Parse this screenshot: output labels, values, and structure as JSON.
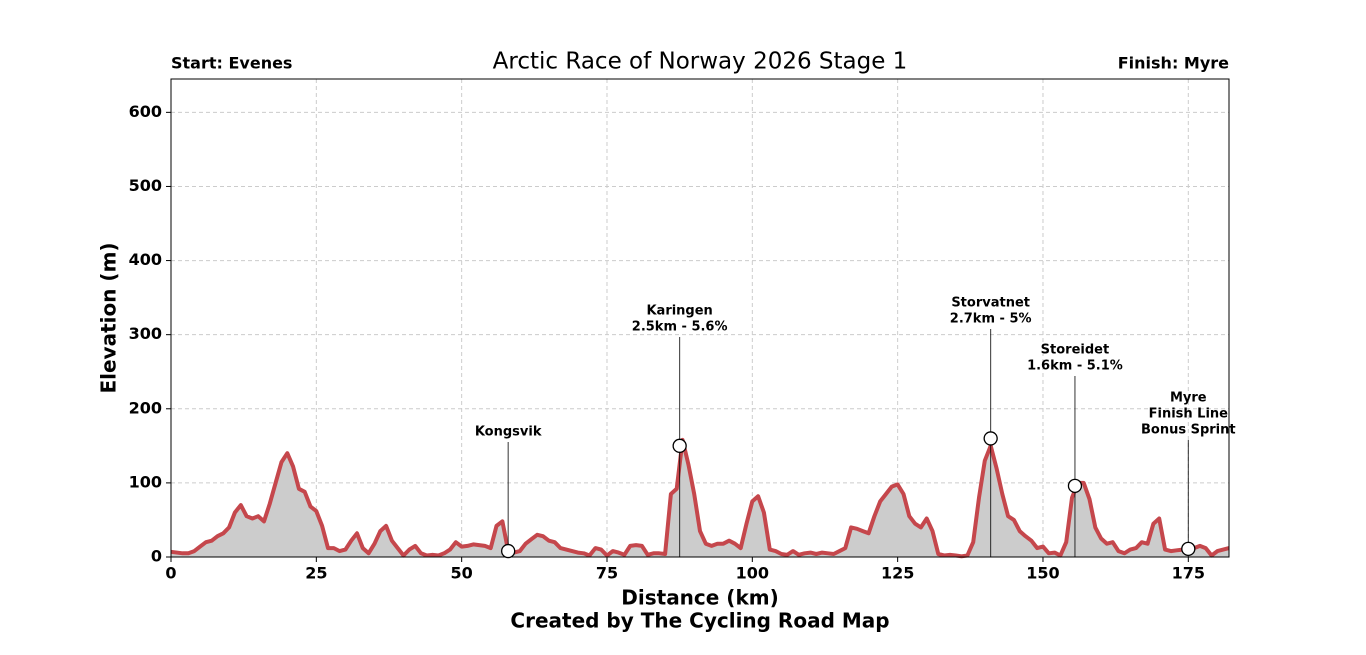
{
  "chart_data": {
    "type": "area",
    "title": "Arctic Race of Norway 2026 Stage 1",
    "start_label": "Start: Evenes",
    "finish_label": "Finish: Myre",
    "xlabel": "Distance (km)",
    "credit": "Created by The Cycling Road Map",
    "ylabel": "Elevation (m)",
    "xlim": [
      0,
      182
    ],
    "ylim": [
      0,
      645
    ],
    "xticks": [
      0,
      25,
      50,
      75,
      100,
      125,
      150,
      175
    ],
    "yticks": [
      0,
      100,
      200,
      300,
      400,
      500,
      600
    ],
    "grid": true,
    "line_color": "#c5474c",
    "fill_color": "#cccccc",
    "x": [
      0,
      2,
      3,
      4,
      5,
      6,
      7,
      8,
      9,
      10,
      11,
      12,
      13,
      14,
      15,
      16,
      17,
      18,
      19,
      20,
      21,
      22,
      23,
      24,
      25,
      26,
      27,
      28,
      29,
      30,
      31,
      32,
      33,
      34,
      35,
      36,
      37,
      38,
      39,
      40,
      41,
      42,
      43,
      44,
      45,
      46,
      47,
      48,
      49,
      50,
      51,
      52,
      53,
      54,
      55,
      56,
      57,
      58,
      59,
      60,
      61,
      62,
      63,
      64,
      65,
      66,
      67,
      68,
      69,
      70,
      71,
      72,
      73,
      74,
      75,
      76,
      77,
      78,
      79,
      80,
      81,
      82,
      83,
      84,
      85,
      86,
      87,
      88,
      89,
      90,
      91,
      92,
      93,
      94,
      95,
      96,
      97,
      98,
      99,
      100,
      101,
      102,
      103,
      104,
      105,
      106,
      107,
      108,
      109,
      110,
      111,
      112,
      113,
      114,
      115,
      116,
      117,
      118,
      119,
      120,
      121,
      122,
      123,
      124,
      125,
      126,
      127,
      128,
      129,
      130,
      131,
      132,
      133,
      134,
      135,
      136,
      137,
      138,
      139,
      140,
      141,
      142,
      143,
      144,
      145,
      146,
      147,
      148,
      149,
      150,
      151,
      152,
      153,
      154,
      155,
      156,
      157,
      158,
      159,
      160,
      161,
      162,
      163,
      164,
      165,
      166,
      167,
      168,
      169,
      170,
      171,
      172,
      173,
      174,
      175,
      176,
      177,
      178,
      179,
      180,
      181,
      182
    ],
    "values": [
      7,
      5,
      5,
      8,
      14,
      20,
      22,
      28,
      32,
      40,
      60,
      70,
      55,
      52,
      55,
      48,
      72,
      100,
      128,
      140,
      122,
      92,
      88,
      68,
      62,
      42,
      12,
      12,
      8,
      10,
      22,
      32,
      12,
      5,
      18,
      35,
      42,
      22,
      12,
      2,
      10,
      15,
      5,
      2,
      3,
      2,
      5,
      10,
      20,
      14,
      15,
      17,
      16,
      15,
      12,
      42,
      48,
      8,
      6,
      8,
      18,
      24,
      30,
      28,
      22,
      20,
      12,
      10,
      8,
      6,
      5,
      2,
      12,
      10,
      2,
      8,
      6,
      3,
      15,
      16,
      15,
      3,
      5,
      5,
      4,
      85,
      92,
      158,
      125,
      85,
      35,
      18,
      15,
      18,
      18,
      22,
      18,
      12,
      45,
      75,
      82,
      60,
      10,
      8,
      4,
      3,
      8,
      3,
      5,
      6,
      4,
      6,
      5,
      4,
      8,
      12,
      40,
      38,
      35,
      32,
      55,
      75,
      85,
      95,
      98,
      85,
      55,
      45,
      40,
      52,
      35,
      4,
      2,
      3,
      2,
      1,
      2,
      20,
      80,
      130,
      150,
      120,
      85,
      55,
      50,
      35,
      28,
      22,
      12,
      14,
      5,
      6,
      2,
      20,
      80,
      100,
      100,
      78,
      40,
      25,
      18,
      20,
      8,
      5,
      10,
      12,
      20,
      18,
      45,
      52,
      10,
      8,
      9,
      10,
      10,
      12,
      15,
      12,
      2,
      8,
      10,
      12
    ],
    "annotations": [
      {
        "x": 58,
        "y": 8,
        "label": [
          "Kongsvik"
        ]
      },
      {
        "x": 87.5,
        "y": 150,
        "label": [
          "Karingen",
          "2.5km - 5.6%"
        ]
      },
      {
        "x": 141,
        "y": 160,
        "label": [
          "Storvatnet",
          "2.7km - 5%"
        ]
      },
      {
        "x": 155.5,
        "y": 96,
        "label": [
          "Storeidet",
          "1.6km - 5.1%"
        ]
      },
      {
        "x": 175,
        "y": 11,
        "label": [
          "Myre",
          "Finish Line",
          "Bonus Sprint"
        ]
      }
    ]
  }
}
